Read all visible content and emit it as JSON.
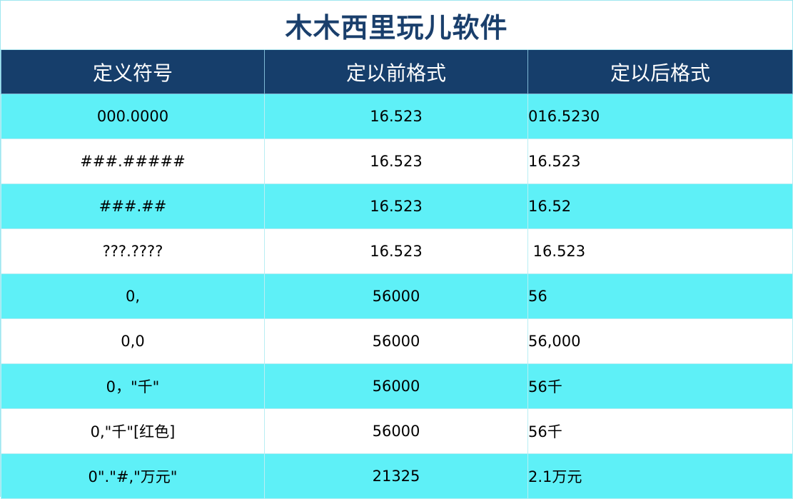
{
  "title": "木木西里玩儿软件",
  "headers": [
    "定义符号",
    "定以前格式",
    "定以后格式"
  ],
  "rows": [
    {
      "symbol": "000.0000",
      "before": "16.523",
      "after": "016.5230"
    },
    {
      "symbol": "###.#####",
      "before": "16.523",
      "after": "16.523"
    },
    {
      "symbol": "###.##",
      "before": "16.523",
      "after": "16.52"
    },
    {
      "symbol": "???.????",
      "before": "16.523",
      "after": " 16.523"
    },
    {
      "symbol": "0,",
      "before": "56000",
      "after": "56"
    },
    {
      "symbol": "0,0",
      "before": "56000",
      "after": "56,000"
    },
    {
      "symbol": "0，\"千\"",
      "before": "56000",
      "after": "56千"
    },
    {
      "symbol": "0,\"千\"[红色]",
      "before": "56000",
      "after": "56千"
    },
    {
      "symbol": "0\".\"#,\"万元\"",
      "before": "21325",
      "after": "2.1万元"
    }
  ],
  "colors": {
    "header_bg": "#163e6b",
    "title_text": "#1a3f6c",
    "odd_row_bg": "#5ef0f7",
    "even_row_bg": "#ffffff"
  }
}
